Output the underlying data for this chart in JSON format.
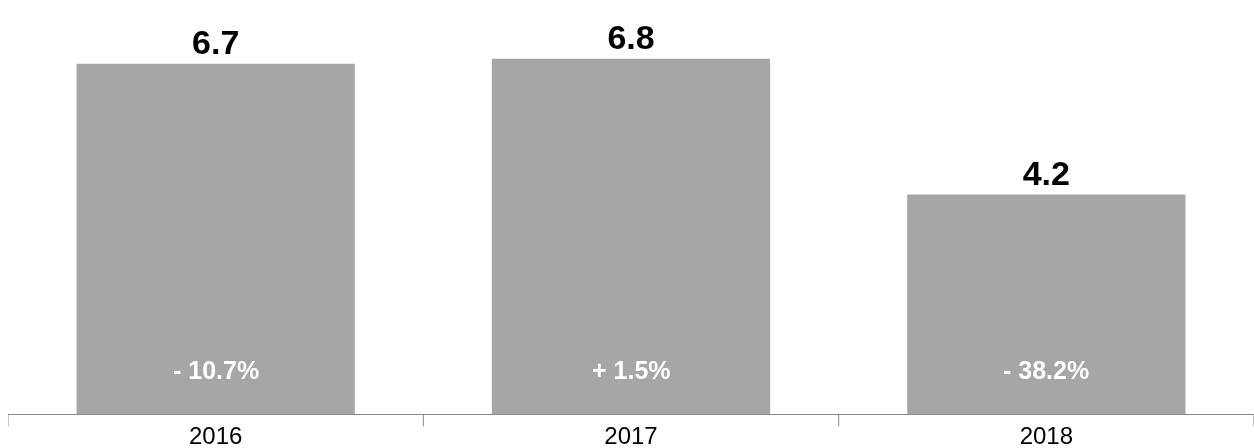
{
  "chart_data": {
    "type": "bar",
    "categories": [
      "2016",
      "2017",
      "2018"
    ],
    "values": [
      6.7,
      6.8,
      4.2
    ],
    "color": "#a6a6a6",
    "data_labels": true,
    "tick_labels": "x",
    "annotations": [
      {
        "text": "- 10.7%",
        "x": "2016",
        "y": 0
      },
      {
        "text": "+ 1.5%",
        "x": "2017",
        "y": 0
      },
      {
        "text": "- 38.2%",
        "x": "2018",
        "y": 0
      }
    ]
  }
}
